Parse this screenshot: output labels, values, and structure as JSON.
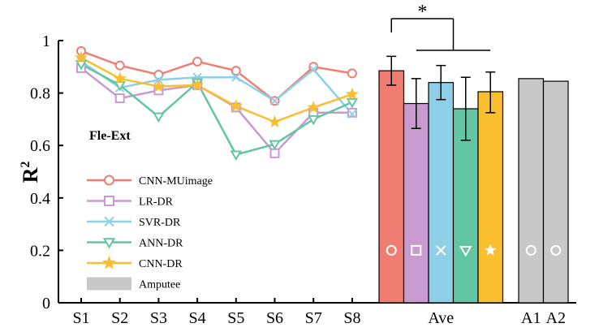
{
  "chart_data": {
    "type": "line",
    "title": "",
    "annotation": "Fle-Ext",
    "ylabel": "R",
    "ylabel_superscript": "2",
    "ylim": [
      0,
      1
    ],
    "yticks": [
      "0",
      "0.2",
      "0.4",
      "0.6",
      "0.8",
      "1"
    ],
    "categories": [
      "S1",
      "S2",
      "S3",
      "S4",
      "S5",
      "S6",
      "S7",
      "S8"
    ],
    "series": [
      {
        "name": "CNN-MUimage",
        "marker": "circle",
        "color": "#f07d72",
        "values": [
          0.96,
          0.905,
          0.87,
          0.92,
          0.885,
          0.77,
          0.9,
          0.875
        ]
      },
      {
        "name": "LR-DR",
        "marker": "square",
        "color": "#c99ad0",
        "values": [
          0.895,
          0.78,
          0.81,
          0.83,
          0.745,
          0.57,
          0.725,
          0.725
        ]
      },
      {
        "name": "SVR-DR",
        "marker": "x",
        "color": "#8dcfe6",
        "values": [
          0.92,
          0.82,
          0.85,
          0.86,
          0.86,
          0.77,
          0.89,
          0.72
        ]
      },
      {
        "name": "ANN-DR",
        "marker": "triangle-down",
        "color": "#63c6a3",
        "values": [
          0.91,
          0.83,
          0.71,
          0.84,
          0.565,
          0.605,
          0.7,
          0.765
        ]
      },
      {
        "name": "CNN-DR",
        "marker": "star",
        "color": "#f9bf2f",
        "values": [
          0.935,
          0.855,
          0.825,
          0.83,
          0.75,
          0.69,
          0.745,
          0.795
        ]
      }
    ],
    "amputee_legend": "Amputee",
    "amputee_color": "#c8c8c8",
    "average": {
      "label": "Ave",
      "bars": [
        {
          "series": "CNN-MUimage",
          "value": 0.885,
          "err_low": 0.83,
          "err_high": 0.94
        },
        {
          "series": "LR-DR",
          "value": 0.76,
          "err_low": 0.665,
          "err_high": 0.855
        },
        {
          "series": "SVR-DR",
          "value": 0.84,
          "err_low": 0.775,
          "err_high": 0.905
        },
        {
          "series": "ANN-DR",
          "value": 0.74,
          "err_low": 0.62,
          "err_high": 0.86
        },
        {
          "series": "CNN-DR",
          "value": 0.805,
          "err_low": 0.725,
          "err_high": 0.88
        }
      ]
    },
    "amputees": [
      {
        "label": "A1",
        "value": 0.855
      },
      {
        "label": "A2",
        "value": 0.845
      }
    ],
    "significance": "*"
  }
}
